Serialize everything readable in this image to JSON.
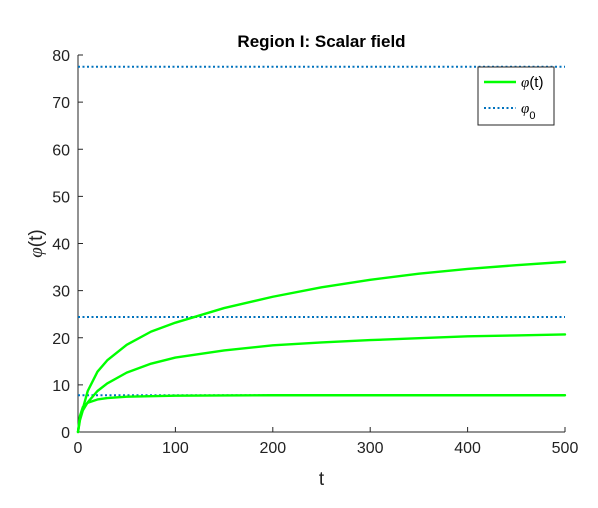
{
  "chart_data": {
    "type": "line",
    "title": "Region I: Scalar field",
    "xlabel": "t",
    "ylabel_symbol": "φ",
    "ylabel_suffix": "(t)",
    "xlim": [
      0,
      500
    ],
    "ylim": [
      0,
      80
    ],
    "xticks": [
      0,
      100,
      200,
      300,
      400,
      500
    ],
    "yticks": [
      0,
      10,
      20,
      30,
      40,
      50,
      60,
      70,
      80
    ],
    "grid": false,
    "legend_position": "top-right",
    "legend": [
      {
        "symbol": "φ",
        "suffix": "(t)",
        "subscript": "",
        "style": "solid",
        "color": "#00ff00"
      },
      {
        "symbol": "φ",
        "suffix": "",
        "subscript": "0",
        "style": "dotted",
        "color": "#0072bd"
      }
    ],
    "series": [
      {
        "legend_index": 0,
        "style": "solid",
        "color": "#00ff00",
        "x": [
          0,
          2,
          5,
          10,
          20,
          30,
          50,
          75,
          100,
          150,
          200,
          250,
          300,
          350,
          400,
          450,
          500
        ],
        "y": [
          0,
          3.4,
          5.3,
          6.2,
          6.9,
          7.2,
          7.5,
          7.6,
          7.7,
          7.75,
          7.8,
          7.8,
          7.8,
          7.8,
          7.8,
          7.8,
          7.8
        ]
      },
      {
        "legend_index": 0,
        "style": "solid",
        "color": "#00ff00",
        "x": [
          0,
          2,
          5,
          10,
          20,
          30,
          50,
          75,
          100,
          150,
          200,
          250,
          300,
          350,
          400,
          450,
          500
        ],
        "y": [
          0,
          2.5,
          4.6,
          6.3,
          8.7,
          10.3,
          12.6,
          14.5,
          15.8,
          17.3,
          18.4,
          19.0,
          19.5,
          19.9,
          20.3,
          20.5,
          20.7
        ]
      },
      {
        "legend_index": 0,
        "style": "solid",
        "color": "#00ff00",
        "x": [
          0,
          2,
          5,
          10,
          20,
          30,
          50,
          75,
          100,
          150,
          200,
          250,
          300,
          350,
          400,
          450,
          500
        ],
        "y": [
          0,
          3.0,
          5.0,
          8.7,
          12.8,
          15.2,
          18.5,
          21.3,
          23.2,
          26.3,
          28.7,
          30.7,
          32.3,
          33.6,
          34.6,
          35.4,
          36.1
        ]
      },
      {
        "legend_index": 1,
        "style": "dotted",
        "color": "#0072bd",
        "x": [
          0,
          500
        ],
        "y": [
          77.5,
          77.5
        ]
      },
      {
        "legend_index": 1,
        "style": "dotted",
        "color": "#0072bd",
        "x": [
          0,
          500
        ],
        "y": [
          24.4,
          24.4
        ]
      },
      {
        "legend_index": 1,
        "style": "dotted",
        "color": "#0072bd",
        "x": [
          0,
          500
        ],
        "y": [
          7.8,
          7.8
        ]
      }
    ]
  }
}
